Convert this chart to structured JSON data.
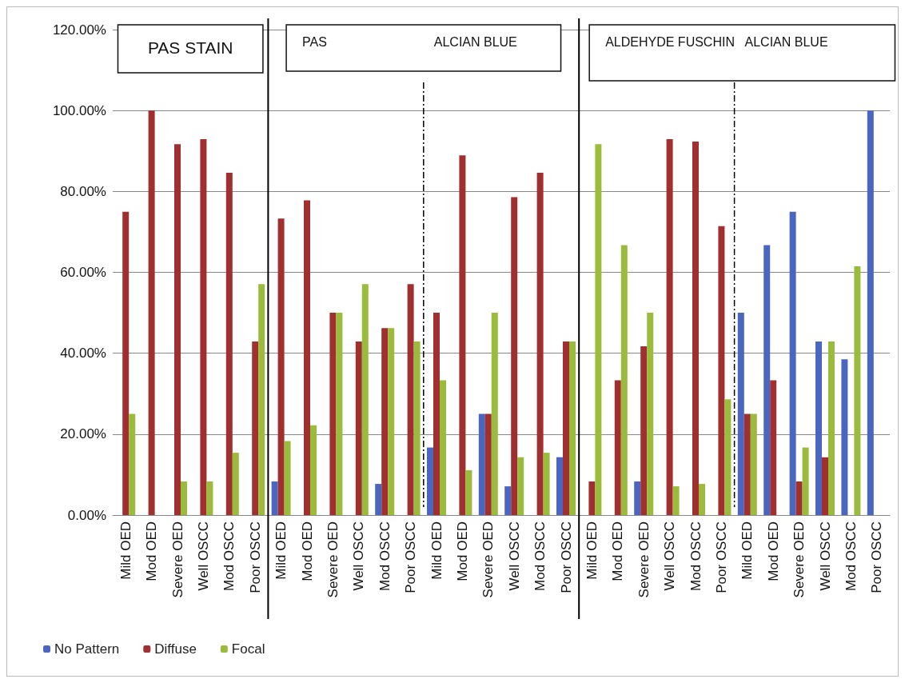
{
  "chart_data": {
    "type": "bar",
    "categories": [
      "Mild OED",
      "Mod OED",
      "Severe OED",
      "Well OSCC",
      "Mod OSCC",
      "Poor OSCC",
      "Mild OED",
      "Mod OED",
      "Severe OED",
      "Well OSCC",
      "Mod OSCC",
      "Poor OSCC",
      "Mild OED",
      "Mod OED",
      "Severe OED",
      "Well OSCC",
      "Mod OSCC",
      "Poor OSCC",
      "Mild OED",
      "Mod OED",
      "Severe OED",
      "Well OSCC",
      "Mod OSCC",
      "Poor OSCC",
      "Mild OED",
      "Mod OED",
      "Severe OED",
      "Well OSCC",
      "Mod OSCC",
      "Poor OSCC"
    ],
    "series": [
      {
        "name": "No Pattern",
        "color": "#4a66c0",
        "values": [
          0,
          0,
          0,
          0,
          0,
          0,
          8.3,
          0,
          0,
          0,
          7.7,
          0,
          16.7,
          0,
          25,
          7.1,
          0,
          14.3,
          0,
          0,
          8.3,
          0,
          0,
          0,
          50,
          66.7,
          75,
          42.9,
          38.5,
          100
        ]
      },
      {
        "name": "Diffuse",
        "color": "#a0302f",
        "values": [
          75,
          100,
          91.7,
          92.9,
          84.6,
          42.9,
          73.3,
          77.8,
          50,
          42.9,
          46.2,
          57.1,
          50,
          88.9,
          25,
          78.6,
          84.6,
          42.9,
          8.3,
          33.3,
          41.7,
          92.9,
          92.3,
          71.4,
          25,
          33.3,
          8.3,
          14.3,
          0,
          0
        ]
      },
      {
        "name": "Focal",
        "color": "#9bbb3c",
        "values": [
          25,
          0,
          8.3,
          8.3,
          15.4,
          57.1,
          18.3,
          22.2,
          50,
          57.1,
          46.2,
          42.9,
          33.3,
          11.1,
          50,
          14.3,
          15.4,
          42.9,
          91.7,
          66.7,
          50,
          7.1,
          7.7,
          28.6,
          25,
          0,
          16.7,
          42.9,
          61.5,
          0
        ]
      }
    ],
    "ylim": [
      0,
      120
    ],
    "yticks": [
      {
        "value": 0,
        "label": "0.00%"
      },
      {
        "value": 20,
        "label": "20.00%"
      },
      {
        "value": 40,
        "label": "40.00%"
      },
      {
        "value": 60,
        "label": "60.00%"
      },
      {
        "value": 80,
        "label": "80.00%"
      },
      {
        "value": 100,
        "label": "100.00%"
      },
      {
        "value": 120,
        "label": "120.00%"
      }
    ],
    "grid": "y",
    "legend": "bottom left",
    "annotations": [
      "PAS STAIN",
      "PAS",
      "ALCIAN BLUE",
      "ALDEHYDE FUSCHIN",
      "ALCIAN BLUE"
    ]
  }
}
